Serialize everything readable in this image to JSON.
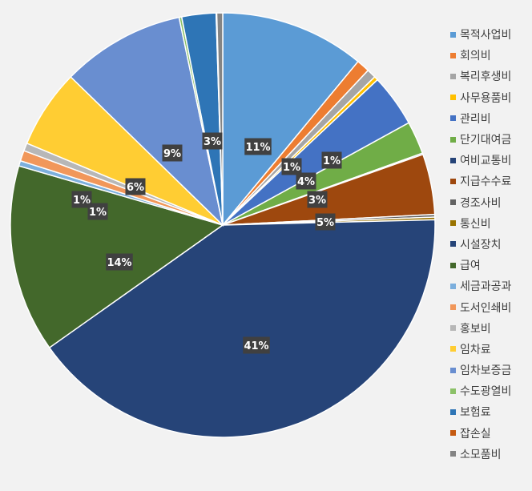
{
  "chart_data": {
    "type": "pie",
    "title": "",
    "slices": [
      {
        "name": "목적사업비",
        "value": 11,
        "label": "11%",
        "color": "#5b9bd5"
      },
      {
        "name": "회의비",
        "value": 1,
        "label": "1%",
        "color": "#ed7d31"
      },
      {
        "name": "복리후생비",
        "value": 0.7,
        "label": "",
        "color": "#a5a5a5"
      },
      {
        "name": "사무용품비",
        "value": 0.3,
        "label": "",
        "color": "#ffc000"
      },
      {
        "name": "관리비",
        "value": 4,
        "label": "4%",
        "color": "#4472c4"
      },
      {
        "name": "단기대여금",
        "value": 2.5,
        "label": "3%",
        "color": "#70ad47"
      },
      {
        "name": "여비교통비",
        "value": 0.1,
        "label": "",
        "color": "#264478"
      },
      {
        "name": "지급수수료",
        "value": 4.6,
        "label": "5%",
        "color": "#9e480e"
      },
      {
        "name": "경조사비",
        "value": 0.2,
        "label": "",
        "color": "#636363"
      },
      {
        "name": "통신비",
        "value": 0.2,
        "label": "",
        "color": "#997300"
      },
      {
        "name": "시설장치",
        "value": 40.6,
        "label": "41%",
        "color": "#264478"
      },
      {
        "name": "급여",
        "value": 14.3,
        "label": "14%",
        "color": "#43682b"
      },
      {
        "name": "세금과공과",
        "value": 0.4,
        "label": "",
        "color": "#7cafdd"
      },
      {
        "name": "도서인쇄비",
        "value": 0.8,
        "label": "1%",
        "color": "#f1975a"
      },
      {
        "name": "홍보비",
        "value": 0.6,
        "label": "1%",
        "color": "#b7b7b7"
      },
      {
        "name": "임차료",
        "value": 6,
        "label": "6%",
        "color": "#ffcd33"
      },
      {
        "name": "임차보증금",
        "value": 9.4,
        "label": "9%",
        "color": "#698ed0"
      },
      {
        "name": "수도광열비",
        "value": 0.2,
        "label": "",
        "color": "#8cc168"
      },
      {
        "name": "보험료",
        "value": 2.6,
        "label": "3%",
        "color": "#2e75b6"
      },
      {
        "name": "잡손실",
        "value": 0.05,
        "label": "",
        "color": "#c55a11"
      },
      {
        "name": "소모품비",
        "value": 0.45,
        "label": "",
        "color": "#848484"
      }
    ],
    "extra_labels": [
      "1%"
    ],
    "legend_position": "right"
  }
}
